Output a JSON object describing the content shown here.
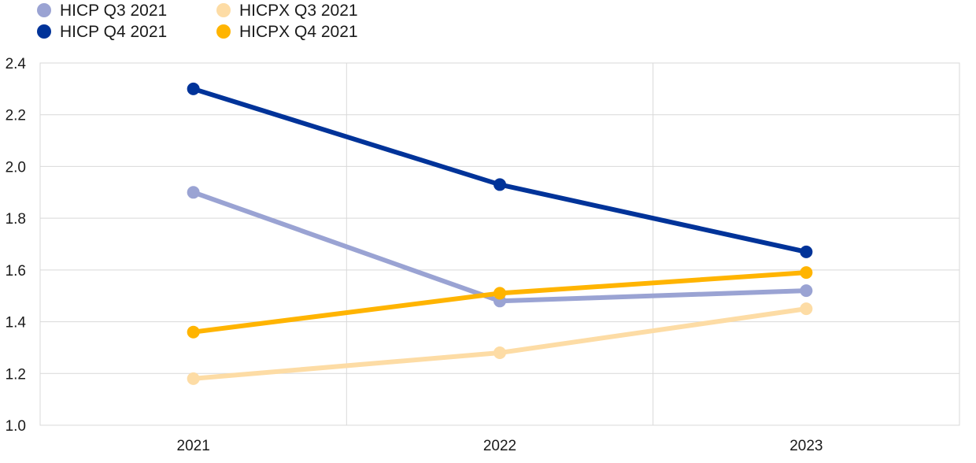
{
  "chart_data": {
    "type": "line",
    "categories": [
      "2021",
      "2022",
      "2023"
    ],
    "ylim": [
      1.0,
      2.4
    ],
    "yticks": [
      "1.0",
      "1.2",
      "1.4",
      "1.6",
      "1.8",
      "2.0",
      "2.2",
      "2.4"
    ],
    "grid": true,
    "legend_position": "top-left",
    "series": [
      {
        "name": "HICP Q3 2021",
        "color": "#9aa3d3",
        "values": [
          1.9,
          1.48,
          1.52
        ]
      },
      {
        "name": "HICP Q4 2021",
        "color": "#003399",
        "values": [
          2.3,
          1.93,
          1.67
        ]
      },
      {
        "name": "HICPX Q3 2021",
        "color": "#fddca5",
        "values": [
          1.18,
          1.28,
          1.45
        ]
      },
      {
        "name": "HICPX Q4 2021",
        "color": "#ffb400",
        "values": [
          1.36,
          1.51,
          1.59
        ]
      }
    ]
  }
}
